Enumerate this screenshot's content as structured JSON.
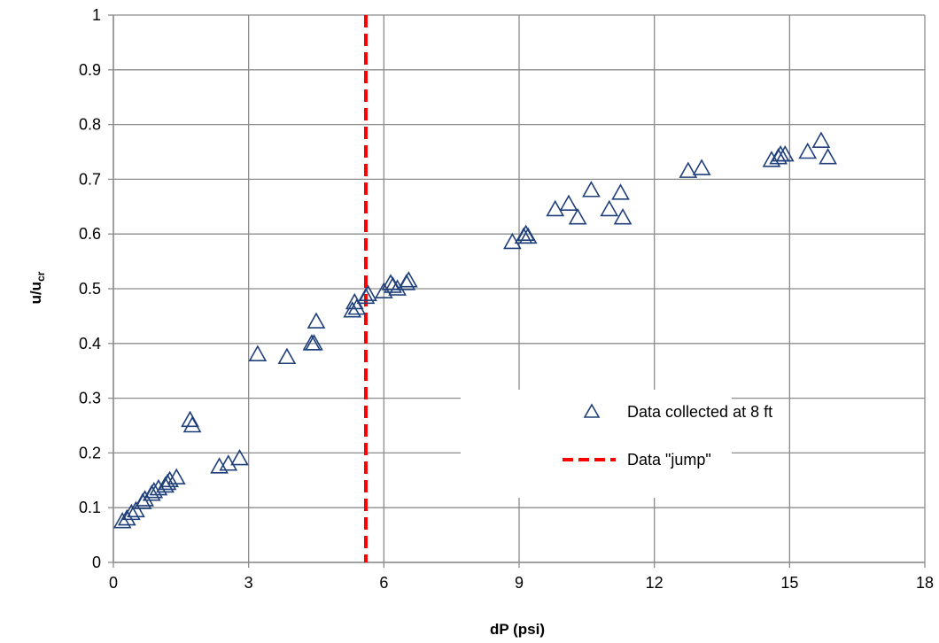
{
  "chart_data": {
    "type": "scatter",
    "xlabel": "dP (psi)",
    "ylabel_main": "u/u",
    "ylabel_sub": "cr",
    "xlim": [
      0,
      18
    ],
    "ylim": [
      0,
      1
    ],
    "xticks": [
      0,
      3,
      6,
      9,
      12,
      15,
      18
    ],
    "xtick_labels": [
      "0",
      "3",
      "6",
      "9",
      "12",
      "15",
      "18"
    ],
    "yticks": [
      0,
      0.1,
      0.2,
      0.3,
      0.4,
      0.5,
      0.6,
      0.7,
      0.8,
      0.9,
      1
    ],
    "ytick_labels": [
      "0",
      "0.1",
      "0.2",
      "0.3",
      "0.4",
      "0.5",
      "0.6",
      "0.7",
      "0.8",
      "0.9",
      "1"
    ],
    "grid": true,
    "legend_position": "lower-right",
    "series": [
      {
        "name": "Data collected at 8 ft",
        "marker": "triangle-open",
        "color": "#1f3f7a",
        "points": [
          [
            0.2,
            0.075
          ],
          [
            0.3,
            0.08
          ],
          [
            0.4,
            0.09
          ],
          [
            0.5,
            0.095
          ],
          [
            0.65,
            0.11
          ],
          [
            0.7,
            0.115
          ],
          [
            0.85,
            0.125
          ],
          [
            0.9,
            0.13
          ],
          [
            1.0,
            0.135
          ],
          [
            1.15,
            0.14
          ],
          [
            1.2,
            0.145
          ],
          [
            1.25,
            0.15
          ],
          [
            1.4,
            0.155
          ],
          [
            1.7,
            0.26
          ],
          [
            1.75,
            0.25
          ],
          [
            2.35,
            0.175
          ],
          [
            2.55,
            0.18
          ],
          [
            2.8,
            0.19
          ],
          [
            3.2,
            0.38
          ],
          [
            3.85,
            0.375
          ],
          [
            4.4,
            0.4
          ],
          [
            4.45,
            0.4
          ],
          [
            4.5,
            0.44
          ],
          [
            5.3,
            0.46
          ],
          [
            5.35,
            0.475
          ],
          [
            5.4,
            0.465
          ],
          [
            5.6,
            0.485
          ],
          [
            5.65,
            0.49
          ],
          [
            6.0,
            0.495
          ],
          [
            6.15,
            0.51
          ],
          [
            6.2,
            0.505
          ],
          [
            6.3,
            0.5
          ],
          [
            6.5,
            0.51
          ],
          [
            6.55,
            0.515
          ],
          [
            8.85,
            0.585
          ],
          [
            9.1,
            0.595
          ],
          [
            9.15,
            0.6
          ],
          [
            9.2,
            0.595
          ],
          [
            9.8,
            0.645
          ],
          [
            10.1,
            0.655
          ],
          [
            10.3,
            0.63
          ],
          [
            10.6,
            0.68
          ],
          [
            11.0,
            0.645
          ],
          [
            11.25,
            0.675
          ],
          [
            11.3,
            0.63
          ],
          [
            12.75,
            0.715
          ],
          [
            13.05,
            0.72
          ],
          [
            14.6,
            0.735
          ],
          [
            14.75,
            0.74
          ],
          [
            14.8,
            0.745
          ],
          [
            14.9,
            0.745
          ],
          [
            15.4,
            0.75
          ],
          [
            15.7,
            0.77
          ],
          [
            15.85,
            0.74
          ]
        ]
      },
      {
        "name": "Data \"jump\"",
        "type": "vline",
        "style": "dashed",
        "color": "#ff0000",
        "x": 5.6
      }
    ]
  }
}
